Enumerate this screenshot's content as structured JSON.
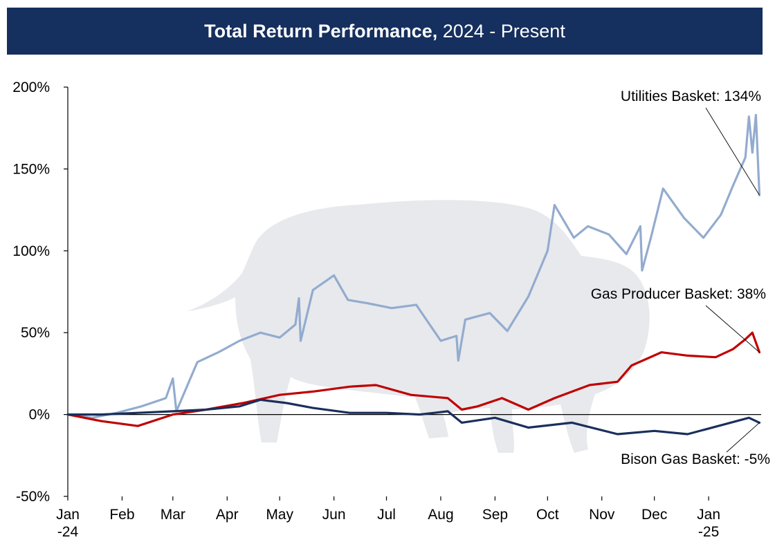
{
  "title": {
    "bold_part": "Total Return Performance,",
    "normal_part": " 2024 - Present"
  },
  "colors": {
    "banner": "#152f5e",
    "utilities": "#93abcf",
    "gas_producer": "#c00000",
    "bison": "#1a2f5c",
    "watermark": "#dfe2e6"
  },
  "chart_data": {
    "type": "line",
    "title": "Total Return Performance, 2024 - Present",
    "xlabel": "",
    "ylabel": "",
    "ylim": [
      -50,
      200
    ],
    "y_ticks": [
      -50,
      0,
      50,
      100,
      150,
      200
    ],
    "y_tick_labels": [
      "-50%",
      "0%",
      "50%",
      "100%",
      "150%",
      "200%"
    ],
    "x_ticks": [
      "2024-01-01",
      "2024-02-01",
      "2024-03-01",
      "2024-04-01",
      "2024-05-01",
      "2024-06-01",
      "2024-07-01",
      "2024-08-01",
      "2024-09-01",
      "2024-10-01",
      "2024-11-01",
      "2024-12-01",
      "2025-01-01"
    ],
    "x_tick_labels": [
      "Jan\n-24",
      "Feb",
      "Mar",
      "Apr",
      "May",
      "Jun",
      "Jul",
      "Aug",
      "Sep",
      "Oct",
      "Nov",
      "Dec",
      "Jan\n-25"
    ],
    "grid": false,
    "legend": "none",
    "annotations": [
      {
        "text": "Utilities Basket: 134%",
        "series": 0,
        "target_date": "2025-01-30",
        "target_value": 134
      },
      {
        "text": "Gas Producer Basket: 38%",
        "series": 1,
        "target_date": "2025-01-30",
        "target_value": 38
      },
      {
        "text": "Bison Gas Basket: -5%",
        "series": 2,
        "target_date": "2025-01-30",
        "target_value": -5
      }
    ],
    "series": [
      {
        "x": [
          "2024-01-01",
          "2024-01-15",
          "2024-01-29",
          "2024-02-12",
          "2024-02-26",
          "2024-03-01",
          "2024-03-03",
          "2024-03-15",
          "2024-03-27",
          "2024-04-08",
          "2024-04-20",
          "2024-05-01",
          "2024-05-10",
          "2024-05-12",
          "2024-05-13",
          "2024-05-20",
          "2024-06-01",
          "2024-06-09",
          "2024-06-20",
          "2024-07-04",
          "2024-07-18",
          "2024-08-01",
          "2024-08-10",
          "2024-08-11",
          "2024-08-15",
          "2024-08-29",
          "2024-09-08",
          "2024-09-20",
          "2024-10-01",
          "2024-10-05",
          "2024-10-16",
          "2024-10-24",
          "2024-11-05",
          "2024-11-15",
          "2024-11-23",
          "2024-11-24",
          "2024-11-29",
          "2024-12-06",
          "2024-12-18",
          "2024-12-29",
          "2025-01-08",
          "2025-01-15",
          "2025-01-22",
          "2025-01-24",
          "2025-01-26",
          "2025-01-28",
          "2025-01-30"
        ],
        "values": [
          0,
          -2,
          1,
          5,
          10,
          22,
          2,
          32,
          38,
          45,
          50,
          47,
          55,
          71,
          45,
          76,
          85,
          70,
          68,
          65,
          67,
          45,
          48,
          33,
          58,
          62,
          51,
          72,
          100,
          128,
          108,
          115,
          110,
          98,
          115,
          88,
          108,
          138,
          120,
          108,
          122,
          140,
          157,
          182,
          160,
          183,
          134
        ]
      },
      {
        "x": [
          "2024-01-01",
          "2024-01-20",
          "2024-02-10",
          "2024-03-01",
          "2024-03-20",
          "2024-04-10",
          "2024-05-01",
          "2024-05-20",
          "2024-06-10",
          "2024-06-25",
          "2024-07-15",
          "2024-08-05",
          "2024-08-13",
          "2024-08-22",
          "2024-09-05",
          "2024-09-20",
          "2024-10-05",
          "2024-10-25",
          "2024-11-10",
          "2024-11-18",
          "2024-12-05",
          "2024-12-20",
          "2025-01-05",
          "2025-01-15",
          "2025-01-22",
          "2025-01-26",
          "2025-01-30"
        ],
        "values": [
          0,
          -4,
          -7,
          0,
          3,
          7,
          12,
          14,
          17,
          18,
          12,
          10,
          3,
          5,
          10,
          3,
          10,
          18,
          20,
          30,
          38,
          36,
          35,
          40,
          46,
          50,
          38
        ]
      },
      {
        "x": [
          "2024-01-01",
          "2024-01-20",
          "2024-02-10",
          "2024-03-01",
          "2024-03-20",
          "2024-04-08",
          "2024-04-20",
          "2024-05-05",
          "2024-05-20",
          "2024-06-10",
          "2024-07-01",
          "2024-07-20",
          "2024-08-05",
          "2024-08-13",
          "2024-09-01",
          "2024-09-20",
          "2024-10-15",
          "2024-11-10",
          "2024-12-01",
          "2024-12-20",
          "2025-01-10",
          "2025-01-24",
          "2025-01-30"
        ],
        "values": [
          0,
          0,
          1,
          2,
          3,
          5,
          9,
          7,
          4,
          1,
          1,
          0,
          2,
          -5,
          -2,
          -8,
          -5,
          -12,
          -10,
          -12,
          -6,
          -2,
          -5
        ]
      }
    ]
  }
}
